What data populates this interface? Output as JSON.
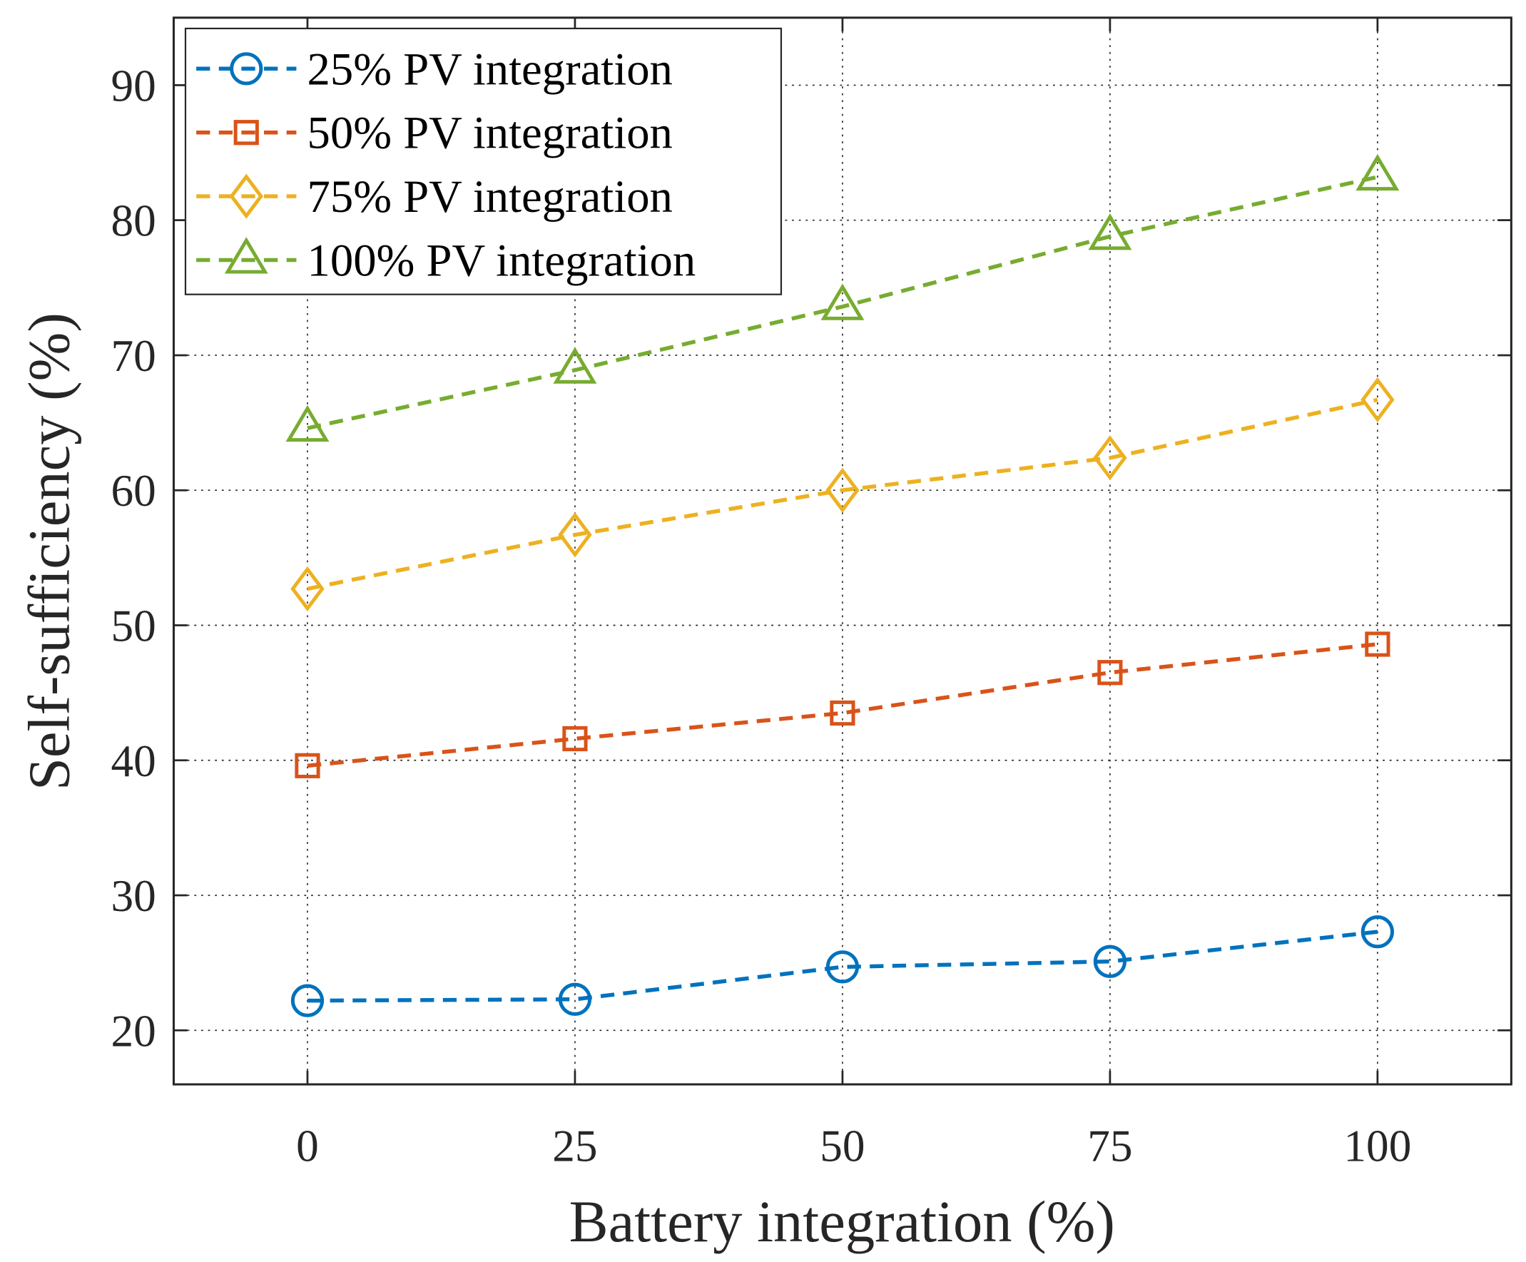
{
  "chart_data": {
    "type": "line",
    "title": "",
    "xlabel": "Battery integration (%)",
    "ylabel": "Self-sufficiency (%)",
    "xlim": [
      -12.5,
      112.5
    ],
    "ylim": [
      16,
      95
    ],
    "x": [
      0,
      25,
      50,
      75,
      100
    ],
    "xticks": [
      "0",
      "25",
      "50",
      "75",
      "100"
    ],
    "yticks": [
      "20",
      "30",
      "40",
      "50",
      "60",
      "70",
      "80",
      "90"
    ],
    "grid": true,
    "legend_position": "top-left",
    "series": [
      {
        "name": "25% PV integration",
        "color": "#0072BD",
        "marker": "circle",
        "values": [
          22.2,
          22.3,
          24.7,
          25.1,
          27.3
        ]
      },
      {
        "name": "50% PV integration",
        "color": "#D95319",
        "marker": "square",
        "values": [
          39.6,
          41.6,
          43.5,
          46.5,
          48.6
        ]
      },
      {
        "name": "75% PV integration",
        "color": "#EDB120",
        "marker": "diamond",
        "values": [
          52.7,
          56.7,
          60.0,
          62.4,
          66.7
        ]
      },
      {
        "name": "100% PV integration",
        "color": "#77AC30",
        "marker": "triangle",
        "values": [
          64.6,
          68.9,
          73.6,
          78.8,
          83.2
        ]
      }
    ]
  }
}
